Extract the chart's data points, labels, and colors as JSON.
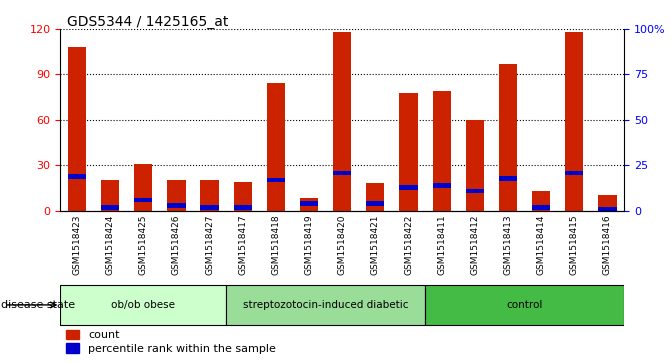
{
  "title": "GDS5344 / 1425165_at",
  "samples": [
    "GSM1518423",
    "GSM1518424",
    "GSM1518425",
    "GSM1518426",
    "GSM1518427",
    "GSM1518417",
    "GSM1518418",
    "GSM1518419",
    "GSM1518420",
    "GSM1518421",
    "GSM1518422",
    "GSM1518411",
    "GSM1518412",
    "GSM1518413",
    "GSM1518414",
    "GSM1518415",
    "GSM1518416"
  ],
  "counts": [
    108,
    20,
    31,
    20,
    20,
    19,
    84,
    8,
    118,
    18,
    78,
    79,
    60,
    97,
    13,
    118,
    10
  ],
  "percentiles": [
    20,
    3,
    7,
    4,
    3,
    3,
    18,
    5,
    22,
    5,
    14,
    15,
    12,
    19,
    3,
    22,
    2
  ],
  "groups": [
    {
      "label": "ob/ob obese",
      "start": 0,
      "end": 5,
      "color": "#ccffcc"
    },
    {
      "label": "streptozotocin-induced diabetic",
      "start": 5,
      "end": 11,
      "color": "#99dd99"
    },
    {
      "label": "control",
      "start": 11,
      "end": 17,
      "color": "#44bb44"
    }
  ],
  "bar_color": "#cc2200",
  "percentile_color": "#0000cc",
  "ylim_left": [
    0,
    120
  ],
  "ylim_right": [
    0,
    100
  ],
  "yticks_left": [
    0,
    30,
    60,
    90,
    120
  ],
  "yticks_right": [
    0,
    25,
    50,
    75,
    100
  ],
  "ytick_labels_right": [
    "0",
    "25",
    "50",
    "75",
    "100%"
  ],
  "bar_width": 0.55,
  "disease_state_label": "disease state",
  "legend_count": "count",
  "legend_percentile": "percentile rank within the sample"
}
